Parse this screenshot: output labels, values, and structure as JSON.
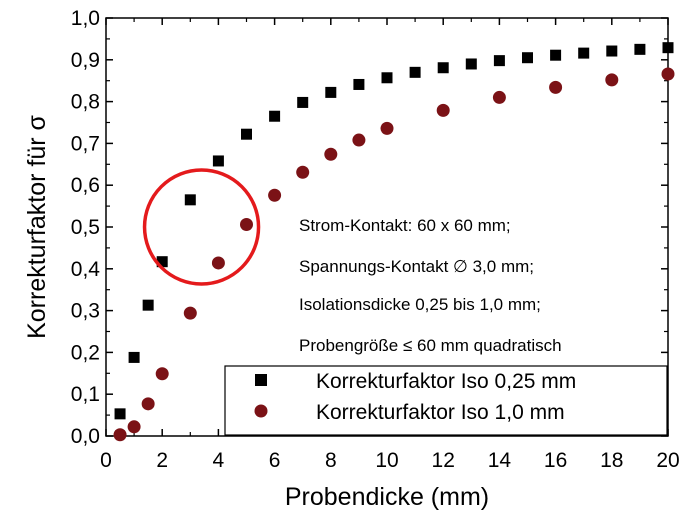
{
  "chart_data": {
    "type": "scatter",
    "title": "",
    "xlabel": "Probendicke (mm)",
    "ylabel": "Korrekturfaktor für σ",
    "xlim": [
      0,
      20
    ],
    "ylim": [
      0.0,
      1.0
    ],
    "x_ticks": [
      "0",
      "2",
      "4",
      "6",
      "8",
      "10",
      "12",
      "14",
      "16",
      "18",
      "20"
    ],
    "y_ticks": [
      "0,0",
      "0,1",
      "0,2",
      "0,3",
      "0,4",
      "0,5",
      "0,6",
      "0,7",
      "0,8",
      "0,9",
      "1,0"
    ],
    "grid": false,
    "legend_position": "bottom-right",
    "series": [
      {
        "name": "Korrekturfaktor Iso 0,25 mm",
        "marker": "square",
        "color": "#000000",
        "x": [
          0.5,
          1,
          1.5,
          2,
          3,
          4,
          5,
          6,
          7,
          8,
          9,
          10,
          11,
          12,
          13,
          14,
          15,
          16,
          17,
          18,
          19,
          20
        ],
        "y": [
          0.053,
          0.188,
          0.313,
          0.417,
          0.565,
          0.658,
          0.722,
          0.765,
          0.798,
          0.822,
          0.841,
          0.857,
          0.87,
          0.881,
          0.89,
          0.898,
          0.905,
          0.911,
          0.916,
          0.921,
          0.925,
          0.929
        ]
      },
      {
        "name": "Korrekturfaktor Iso 1,0 mm",
        "marker": "circle",
        "color": "#7b1216",
        "x": [
          0.5,
          1,
          1.5,
          2,
          3,
          4,
          5,
          6,
          7,
          8,
          9,
          10,
          12,
          14,
          16,
          18,
          20
        ],
        "y": [
          0.003,
          0.022,
          0.077,
          0.149,
          0.294,
          0.414,
          0.506,
          0.576,
          0.631,
          0.674,
          0.708,
          0.736,
          0.779,
          0.81,
          0.834,
          0.852,
          0.866
        ]
      }
    ],
    "annotations": [
      "Strom-Kontakt: 60 x 60 mm;",
      "Spannungs-Kontakt ∅ 3,0 mm;",
      "Isolationsdicke 0,25 bis 1,0 mm;",
      "Probengröße ≤ 60 mm quadratisch"
    ],
    "highlight_circle": {
      "center_x": 3.4,
      "center_y": 0.5,
      "color": "#e41a1c"
    }
  }
}
